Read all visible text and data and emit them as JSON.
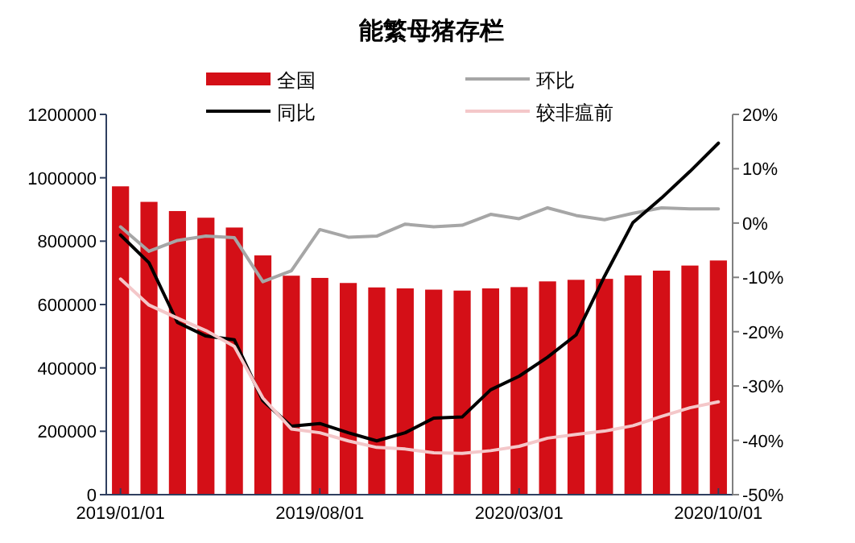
{
  "chart_data": {
    "type": "bar",
    "title": "能繁母猪存栏",
    "categories": [
      "2019/01/01",
      null,
      null,
      null,
      null,
      null,
      null,
      "2019/08/01",
      null,
      null,
      null,
      null,
      null,
      null,
      "2020/03/01",
      null,
      null,
      null,
      null,
      null,
      null,
      "2020/10/01"
    ],
    "ylim": [
      0,
      1200000
    ],
    "yticks": [
      0,
      200000,
      400000,
      600000,
      800000,
      1000000,
      1200000
    ],
    "y2lim": [
      -50,
      20
    ],
    "y2ticks": [
      {
        "value": -50,
        "label": "-50%"
      },
      {
        "value": -40,
        "label": "-40%"
      },
      {
        "value": -30,
        "label": "-30%"
      },
      {
        "value": -20,
        "label": "-20%"
      },
      {
        "value": -10,
        "label": "-10%"
      },
      {
        "value": 0,
        "label": "0%"
      },
      {
        "value": 10,
        "label": "10%"
      },
      {
        "value": 20,
        "label": "20%"
      }
    ],
    "grid": false,
    "legend": "top",
    "series": [
      {
        "name": "全国",
        "color": "#d40f17",
        "values": [
          973000,
          924000,
          895000,
          874000,
          843000,
          755000,
          691000,
          684000,
          668000,
          654000,
          651000,
          647000,
          644000,
          651000,
          655000,
          673000,
          678000,
          681000,
          692000,
          707000,
          723000,
          739000
        ]
      },
      {
        "name": "环比",
        "type": "line",
        "axis": "y2",
        "color": "#a6a6a6",
        "values": [
          -0.7,
          -5.2,
          -3.2,
          -2.4,
          -2.7,
          -10.8,
          -8.8,
          -1.2,
          -2.6,
          -2.4,
          -0.2,
          -0.7,
          -0.4,
          1.6,
          0.8,
          2.8,
          1.4,
          0.6,
          1.8,
          2.8,
          2.6,
          2.6
        ]
      },
      {
        "name": "同比",
        "type": "line",
        "axis": "y2",
        "color": "#000000",
        "values": [
          -2.2,
          -7.3,
          -18.3,
          -20.8,
          -21.5,
          -32.7,
          -37.4,
          -36.9,
          -38.6,
          -40.1,
          -38.6,
          -35.9,
          -35.7,
          -30.7,
          -28.2,
          -24.7,
          -20.6,
          -9.8,
          0.1,
          4.6,
          9.5,
          14.7
        ]
      },
      {
        "name": "较非瘟前",
        "type": "line",
        "axis": "y2",
        "color": "#f4c7c9",
        "values": [
          -10.3,
          -15.1,
          -17.5,
          -19.8,
          -22.7,
          -32.2,
          -37.9,
          -38.6,
          -40.1,
          -41.3,
          -41.6,
          -42.3,
          -42.4,
          -41.9,
          -41.1,
          -39.6,
          -38.9,
          -38.3,
          -37.3,
          -35.6,
          -34.0,
          -32.9
        ]
      }
    ]
  }
}
